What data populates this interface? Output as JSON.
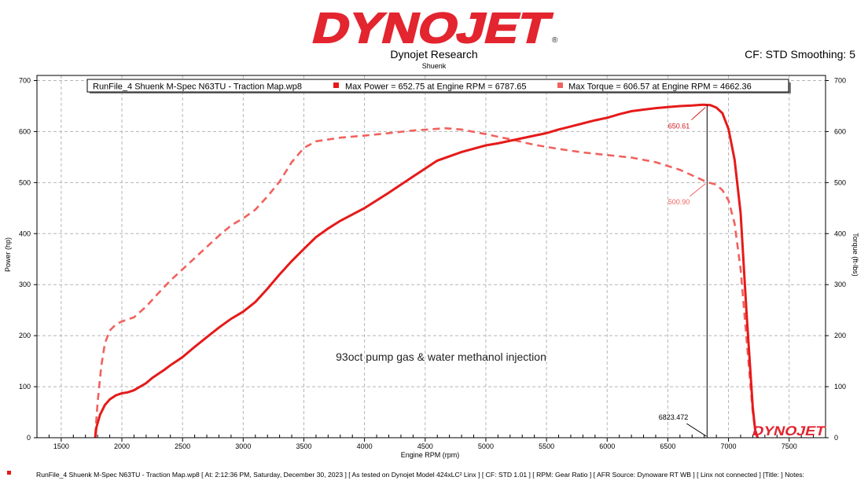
{
  "header": {
    "brand": "DYNOJET",
    "registered": "®",
    "company": "Dynojet Research",
    "subtitle": "Shuenk",
    "correction": "CF: STD Smoothing: 5"
  },
  "legend": {
    "file": "RunFile_4 Shuenk M-Spec N63TU - Traction Map.wp8",
    "power": "Max Power = 652.75 at Engine RPM = 6787.65",
    "torque": "Max Torque = 606.57 at Engine RPM = 4662.36"
  },
  "footer": {
    "text": "RunFile_4 Shuenk M-Spec N63TU - Traction Map.wp8 [ At: 2:12:36 PM, Saturday, December 30, 2023 ] [ As tested on Dynojet Model 424xLC² Linx ] [ CF: STD 1.01 ] [ RPM: Gear Ratio ] [ AFR Source: Dynoware RT WB ] [ Linx not connected ] [Title: ]  Notes:"
  },
  "watermark": "DYNOJET",
  "chart_data": {
    "type": "line",
    "xlabel": "Engine RPM (rpm)",
    "ylabel": "Power (hp)",
    "y2label": "Torque (ft-lbs)",
    "xlim": [
      1300,
      7800
    ],
    "ylim": [
      0,
      710
    ],
    "y2lim": [
      0,
      710
    ],
    "x_ticks": [
      1500,
      2000,
      2500,
      3000,
      3500,
      4000,
      4500,
      5000,
      5500,
      6000,
      6500,
      7000,
      7500
    ],
    "y_ticks": [
      0,
      100,
      200,
      300,
      400,
      500,
      600,
      700
    ],
    "grid": true,
    "colors": {
      "power": "#e61a1a",
      "torque": "#f0625e"
    },
    "annotation": "93oct pump gas & water methanol injection",
    "cursor": {
      "x": 6823.472,
      "label": "6823.472",
      "power_value": "650.61",
      "torque_value": "500.90"
    },
    "series": [
      {
        "name": "Max Power = 652.75 at Engine RPM = 6787.65",
        "style": "solid",
        "x": [
          1780,
          1790,
          1820,
          1860,
          1900,
          1950,
          2000,
          2050,
          2100,
          2150,
          2200,
          2250,
          2300,
          2350,
          2400,
          2450,
          2500,
          2600,
          2700,
          2800,
          2900,
          3000,
          3100,
          3200,
          3300,
          3400,
          3500,
          3600,
          3700,
          3800,
          4000,
          4200,
          4400,
          4600,
          4800,
          5000,
          5100,
          5200,
          5300,
          5400,
          5500,
          5600,
          5700,
          5800,
          5900,
          6000,
          6100,
          6200,
          6300,
          6400,
          6500,
          6600,
          6700,
          6787.65,
          6850,
          6900,
          6950,
          7000,
          7050,
          7100,
          7150,
          7200,
          7220,
          7240
        ],
        "values": [
          0,
          20,
          45,
          64,
          75,
          83,
          87,
          89,
          93,
          100,
          107,
          117,
          125,
          133,
          142,
          150,
          158,
          178,
          197,
          216,
          233,
          247,
          266,
          292,
          320,
          346,
          370,
          393,
          410,
          425,
          450,
          480,
          512,
          543,
          560,
          573,
          577,
          582,
          587,
          592,
          597,
          604,
          610,
          616,
          622,
          627,
          634,
          640,
          643,
          646,
          648,
          650,
          651,
          652.75,
          652,
          647,
          636,
          605,
          545,
          440,
          240,
          60,
          15,
          0
        ]
      },
      {
        "name": "Max Torque = 606.57 at Engine RPM = 4662.36",
        "style": "dashed",
        "x": [
          1780,
          1800,
          1830,
          1860,
          1900,
          1950,
          2000,
          2100,
          2200,
          2300,
          2400,
          2500,
          2600,
          2700,
          2800,
          2900,
          3000,
          3100,
          3200,
          3300,
          3400,
          3500,
          3600,
          3800,
          4000,
          4200,
          4400,
          4662.36,
          4800,
          5000,
          5200,
          5400,
          5600,
          5800,
          6000,
          6200,
          6400,
          6600,
          6823.47,
          6900,
          6950,
          7000,
          7050,
          7100,
          7150,
          7200,
          7220,
          7240
        ],
        "values": [
          5,
          70,
          140,
          185,
          210,
          222,
          228,
          236,
          257,
          283,
          308,
          330,
          352,
          374,
          396,
          416,
          430,
          447,
          473,
          502,
          540,
          568,
          581,
          588,
          592,
          597,
          602,
          606.57,
          604,
          595,
          585,
          574,
          566,
          559,
          554,
          549,
          540,
          525,
          500.9,
          496,
          485,
          465,
          420,
          330,
          190,
          50,
          15,
          0
        ]
      }
    ]
  }
}
